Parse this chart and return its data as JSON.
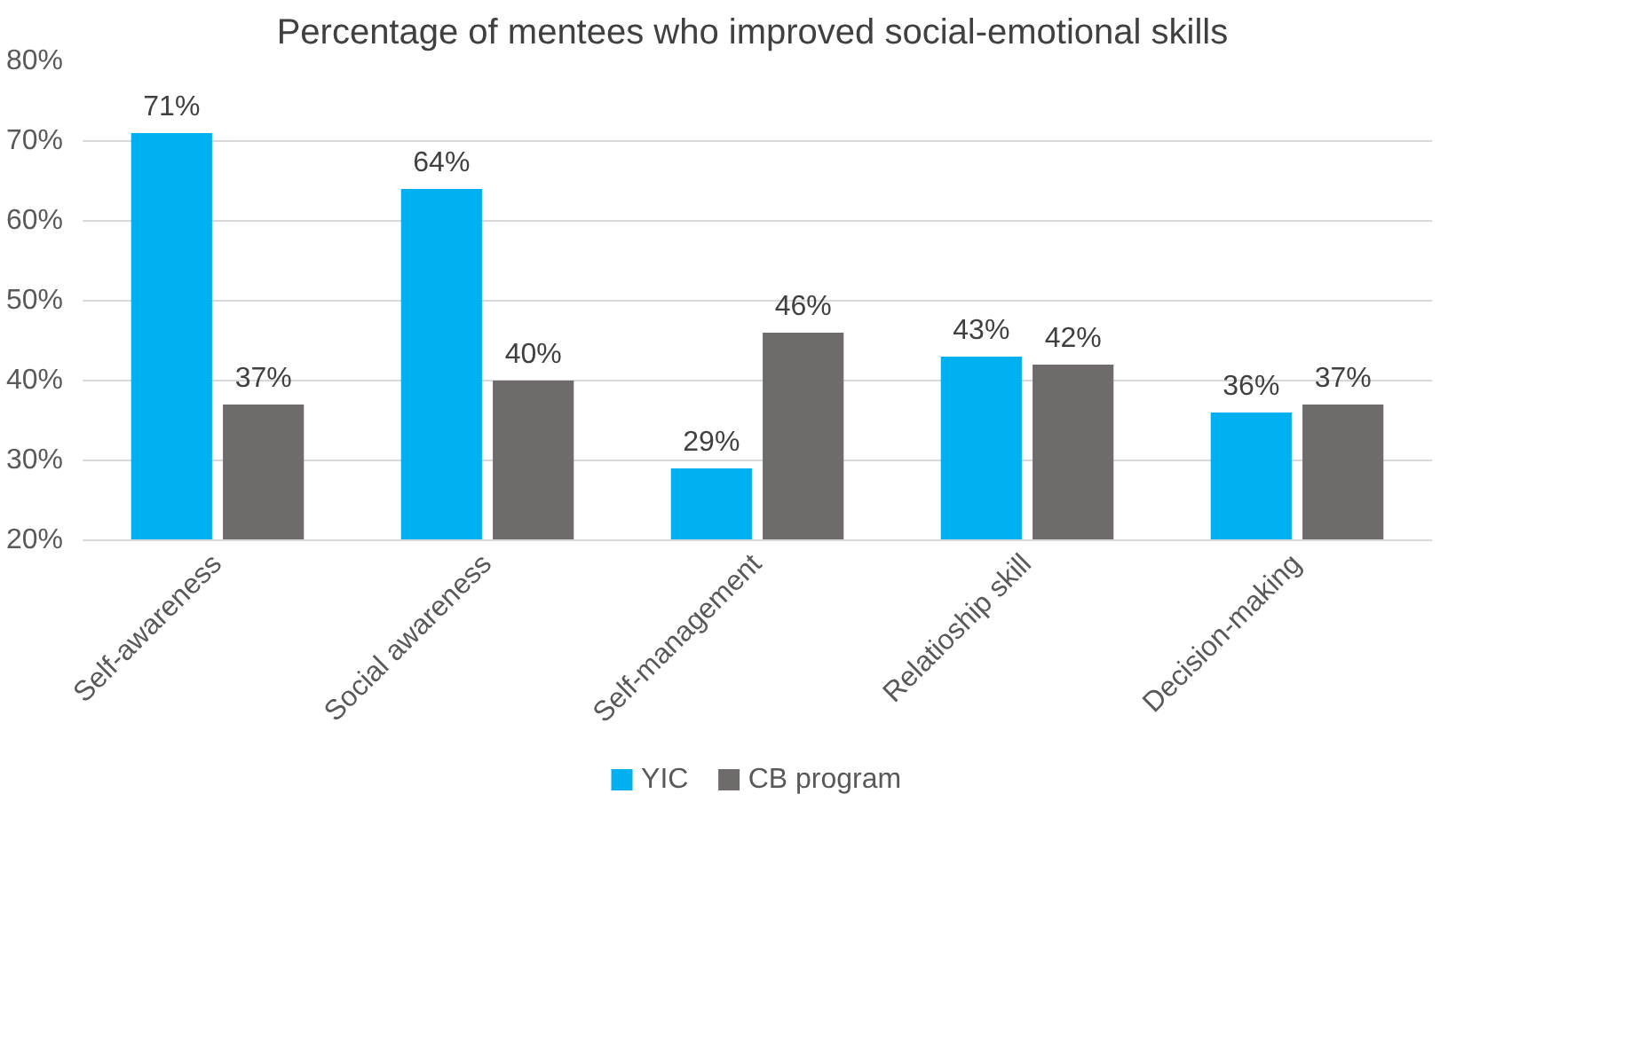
{
  "chart_data": {
    "type": "bar",
    "title": "Percentage of mentees who improved social-emotional  skills",
    "categories": [
      "Self-awareness",
      "Social awareness",
      "Self-management",
      "Relatioship skill",
      "Decision-making"
    ],
    "series": [
      {
        "name": "YIC",
        "color": "#00b0f0",
        "values": [
          71,
          64,
          29,
          43,
          36
        ],
        "value_labels": [
          "71%",
          "64%",
          "29%",
          "43%",
          "36%"
        ]
      },
      {
        "name": "CB program",
        "color": "#6f6b6a",
        "values": [
          37,
          40,
          46,
          42,
          37
        ],
        "value_labels": [
          "37%",
          "40%",
          "46%",
          "42%",
          "37%"
        ]
      }
    ],
    "ylim": [
      20,
      80
    ],
    "yticks": [
      {
        "value": 20,
        "label": "20%"
      },
      {
        "value": 30,
        "label": "30%"
      },
      {
        "value": 40,
        "label": "40%"
      },
      {
        "value": 50,
        "label": "50%"
      },
      {
        "value": 60,
        "label": "60%"
      },
      {
        "value": 70,
        "label": "70%"
      },
      {
        "value": 80,
        "label": "80%"
      }
    ],
    "grid": "y",
    "legend": "bottom"
  }
}
